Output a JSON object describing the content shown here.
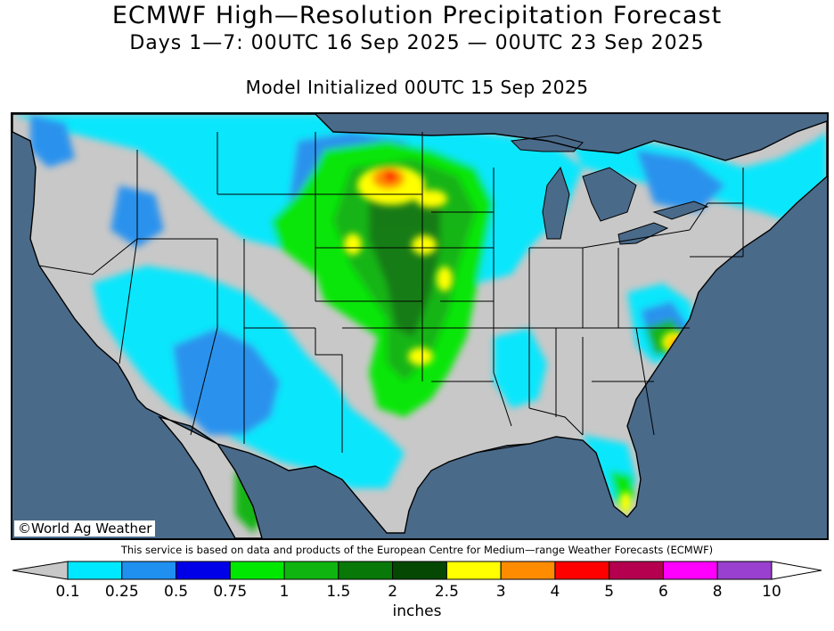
{
  "header": {
    "title": "ECMWF High—Resolution Precipitation Forecast",
    "subtitle": "Days 1—7: 00UTC 16 Sep 2025 — 00UTC 23 Sep 2025",
    "init": "Model Initialized 00UTC 15 Sep 2025"
  },
  "map": {
    "region": "Contiguous United States",
    "credit": "©World Ag Weather",
    "colors": {
      "ocean": "#4a6a8a",
      "land_no_precip": "#c8c8c8",
      "border": "#000000"
    }
  },
  "disclaimer": "This service is based on data and products of the European Centre for Medium—range Weather Forecasts (ECMWF)",
  "legend": {
    "units": "inches",
    "ticks": [
      "0.1",
      "0.25",
      "0.5",
      "0.75",
      "1",
      "1.5",
      "2",
      "2.5",
      "3",
      "4",
      "5",
      "6",
      "8",
      "10"
    ],
    "colors": [
      "#c8c8c8",
      "#00e8ff",
      "#2090f0",
      "#0000e8",
      "#00e800",
      "#10b410",
      "#087808",
      "#044804",
      "#ffff00",
      "#ff8c00",
      "#ff0000",
      "#b4004e",
      "#ff00ff",
      "#9a40d0",
      "#ffffff"
    ]
  }
}
